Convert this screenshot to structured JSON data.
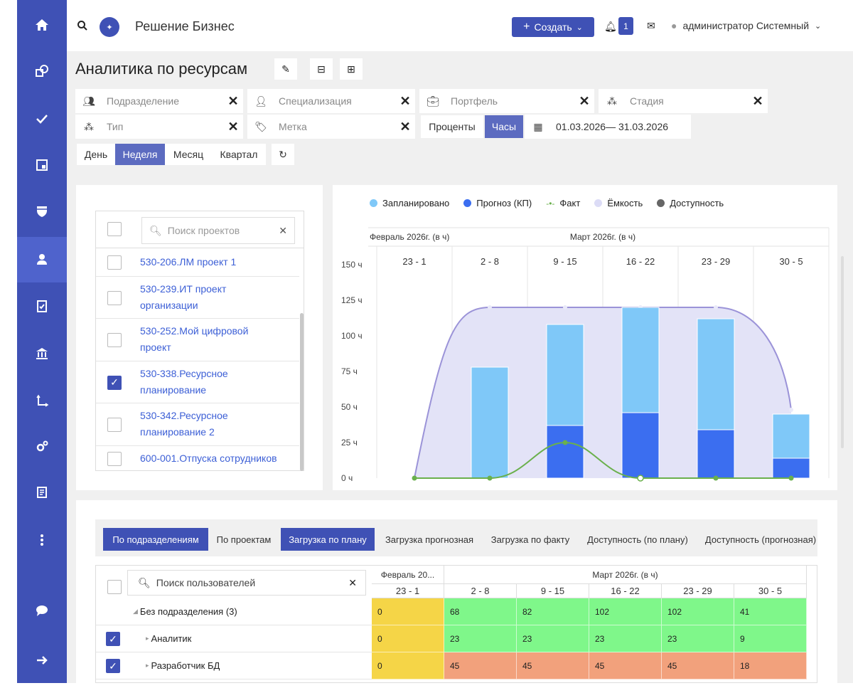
{
  "header": {
    "app_title": "Решение Бизнес",
    "create_label": "Создать",
    "notifications_count": "1",
    "user_name": "администратор Системный"
  },
  "page": {
    "title": "Аналитика по ресурсам"
  },
  "filters": {
    "department": "Подразделение",
    "specialization": "Специализация",
    "portfolio": "Портфель",
    "stage": "Стадия",
    "type": "Тип",
    "tag": "Метка",
    "percent": "Проценты",
    "hours": "Часы",
    "date_range": "01.03.2026— 31.03.2026"
  },
  "periods": [
    "День",
    "Неделя",
    "Месяц",
    "Квартал"
  ],
  "active_period": "Неделя",
  "projects": {
    "search_placeholder": "Поиск проектов",
    "items": [
      {
        "line1": "530-206.ЛМ проект 1",
        "line2": "",
        "checked": false
      },
      {
        "line1": "530-239.ИТ проект",
        "line2": "организации",
        "checked": false
      },
      {
        "line1": "530-252.Мой цифровой",
        "line2": "проект",
        "checked": false
      },
      {
        "line1": "530-338.Ресурсное",
        "line2": "планирование",
        "checked": true
      },
      {
        "line1": "530-342.Ресурсное",
        "line2": "планирование 2",
        "checked": false
      },
      {
        "line1": "600-001.Отпуска сотрудников",
        "line2": "",
        "checked": false
      }
    ]
  },
  "colors": {
    "planned": "#7fc8f8",
    "forecast": "#3b6ef0",
    "fact": "#6ab04c",
    "capacity": "#dcdcf6",
    "availability": "#666666"
  },
  "chart_data": {
    "type": "bar",
    "legend": [
      "Запланировано",
      "Прогноз (КП)",
      "Факт",
      "Ёмкость",
      "Доступность"
    ],
    "months": [
      {
        "label": "Февраль 2026г. (в ч)"
      },
      {
        "label": "Март 2026г. (в ч)"
      }
    ],
    "categories": [
      "23 - 1",
      "2 - 8",
      "9 - 15",
      "16 - 22",
      "23 - 29",
      "30 - 5"
    ],
    "y_ticks": [
      "0 ч",
      "25 ч",
      "50 ч",
      "75 ч",
      "100 ч",
      "125 ч",
      "150 ч"
    ],
    "ylim": [
      0,
      150
    ],
    "series": [
      {
        "name": "Запланировано",
        "values": [
          0,
          78,
          108,
          120,
          112,
          45
        ]
      },
      {
        "name": "Прогноз (КП)",
        "values": [
          0,
          0,
          37,
          46,
          34,
          14
        ]
      },
      {
        "name": "Факт",
        "values": [
          0,
          0,
          25,
          0,
          0,
          0
        ]
      },
      {
        "name": "Ёмкость",
        "values": [
          0,
          120,
          120,
          120,
          120,
          48
        ]
      }
    ]
  },
  "bottom_tabs": [
    "По подразделениям",
    "По проектам",
    "Загрузка по плану",
    "Загрузка прогнозная",
    "Загрузка по факту",
    "Доступность (по плану)",
    "Доступность (прогнозная)"
  ],
  "table": {
    "search_placeholder": "Поиск пользователей",
    "month_feb": "Февраль 20...",
    "month_mar": "Март 2026г. (в ч)",
    "weeks": [
      "23 - 1",
      "2 - 8",
      "9 - 15",
      "16 - 22",
      "23 - 29",
      "30 - 5"
    ],
    "rows": [
      {
        "name": "Без подразделения (3)",
        "values": [
          "0",
          "68",
          "82",
          "102",
          "102",
          "41"
        ],
        "checked": null
      },
      {
        "name": "Аналитик",
        "values": [
          "0",
          "23",
          "23",
          "23",
          "23",
          "9"
        ],
        "checked": true
      },
      {
        "name": "Разработчик БД",
        "values": [
          "0",
          "45",
          "45",
          "45",
          "45",
          "18"
        ],
        "checked": true
      }
    ]
  }
}
